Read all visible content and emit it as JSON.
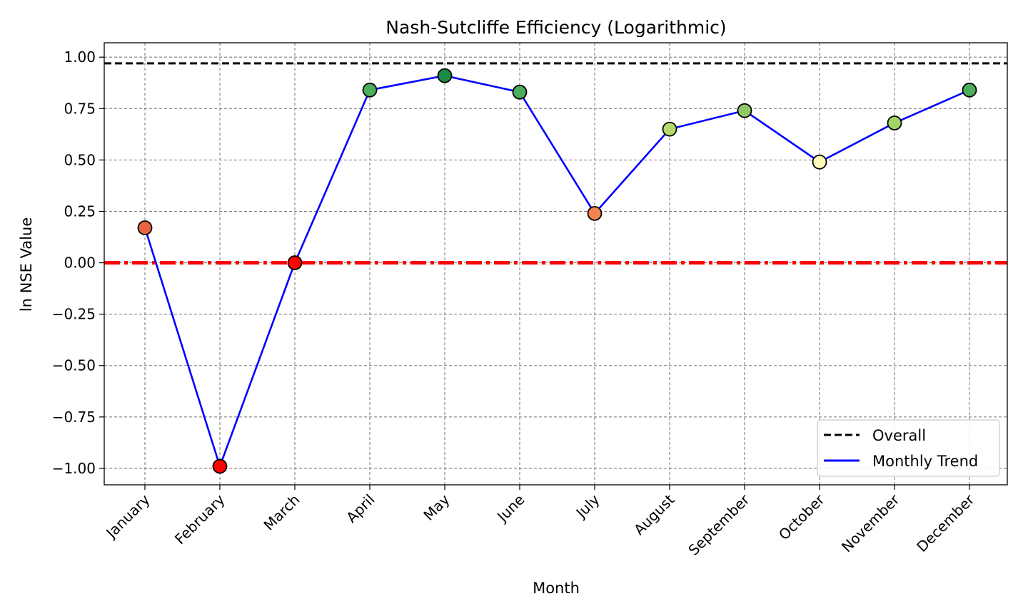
{
  "chart_data": {
    "type": "line",
    "title": "Nash-Sutcliffe Efficiency (Logarithmic)",
    "xlabel": "Month",
    "ylabel": "ln NSE Value",
    "categories": [
      "January",
      "February",
      "March",
      "April",
      "May",
      "June",
      "July",
      "August",
      "September",
      "October",
      "November",
      "December"
    ],
    "series": [
      {
        "name": "Monthly Trend",
        "color": "#0000ff",
        "values": [
          0.17,
          -0.99,
          0.0,
          0.84,
          0.91,
          0.83,
          0.24,
          0.65,
          0.74,
          0.49,
          0.68,
          0.84
        ],
        "marker_colors": [
          "#e8643f",
          "#ff0000",
          "#ff0000",
          "#4cad5b",
          "#1a8c45",
          "#4cad5b",
          "#f3844f",
          "#b5d96a",
          "#8fc964",
          "#fffbbb",
          "#a3d46a",
          "#4cad5b"
        ]
      }
    ],
    "reference_lines": [
      {
        "name": "Overall",
        "value": 0.97,
        "style": "dashed",
        "color": "#000000"
      },
      {
        "value": 0.0,
        "style": "dash-dot",
        "color": "#ff0000"
      }
    ],
    "ylim": [
      -1.08,
      1.07
    ],
    "yticks": [
      1.0,
      0.75,
      0.5,
      0.25,
      0.0,
      -0.25,
      -0.5,
      -0.75,
      -1.0
    ],
    "ytick_labels": [
      "1.00",
      "0.75",
      "0.50",
      "0.25",
      "0.00",
      "−0.25",
      "−0.50",
      "−0.75",
      "−1.00"
    ],
    "grid": true,
    "legend_position": "lower-right",
    "legend": [
      {
        "label": "Overall",
        "style": "dashed",
        "color": "#000000"
      },
      {
        "label": "Monthly Trend",
        "style": "solid",
        "color": "#0000ff"
      }
    ]
  }
}
